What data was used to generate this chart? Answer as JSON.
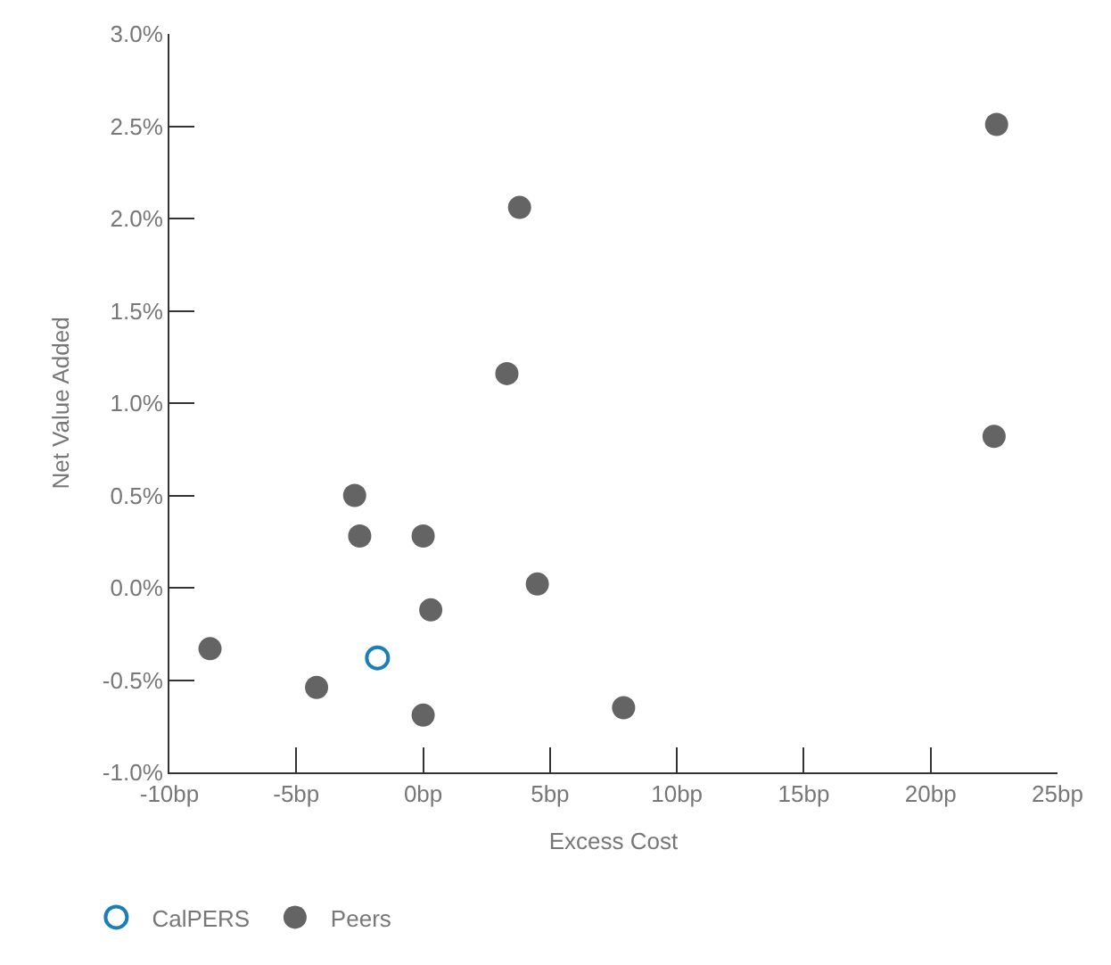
{
  "chart_data": {
    "type": "scatter",
    "xlabel": "Excess Cost",
    "ylabel": "Net Value Added",
    "xlim": [
      -10,
      25
    ],
    "ylim": [
      -1.0,
      3.0
    ],
    "xticks": [
      {
        "value": -10,
        "label": "-10bp"
      },
      {
        "value": -5,
        "label": "-5bp"
      },
      {
        "value": 0,
        "label": "0bp"
      },
      {
        "value": 5,
        "label": "5bp"
      },
      {
        "value": 10,
        "label": "10bp"
      },
      {
        "value": 15,
        "label": "15bp"
      },
      {
        "value": 20,
        "label": "20bp"
      },
      {
        "value": 25,
        "label": "25bp"
      }
    ],
    "yticks": [
      {
        "value": -1.0,
        "label": "-1.0%"
      },
      {
        "value": -0.5,
        "label": "-0.5%"
      },
      {
        "value": 0.0,
        "label": "0.0%"
      },
      {
        "value": 0.5,
        "label": "0.5%"
      },
      {
        "value": 1.0,
        "label": "1.0%"
      },
      {
        "value": 1.5,
        "label": "1.5%"
      },
      {
        "value": 2.0,
        "label": "2.0%"
      },
      {
        "value": 2.5,
        "label": "2.5%"
      },
      {
        "value": 3.0,
        "label": "3.0%"
      }
    ],
    "legend": "bottom left",
    "marker": "circle",
    "series": [
      {
        "name": "CalPERS",
        "color": "#1a7fb8",
        "x": [
          -1.8
        ],
        "values": [
          -0.38
        ]
      },
      {
        "name": "Peers",
        "color": "#646464",
        "x": [
          -8.4,
          -4.2,
          -2.7,
          -2.5,
          0.0,
          0.3,
          0.0,
          3.3,
          3.8,
          4.5,
          7.9,
          22.5,
          22.6
        ],
        "values": [
          -0.33,
          -0.54,
          0.5,
          0.28,
          0.28,
          -0.12,
          -0.69,
          1.16,
          2.06,
          0.02,
          -0.65,
          0.82,
          2.51
        ]
      }
    ]
  }
}
